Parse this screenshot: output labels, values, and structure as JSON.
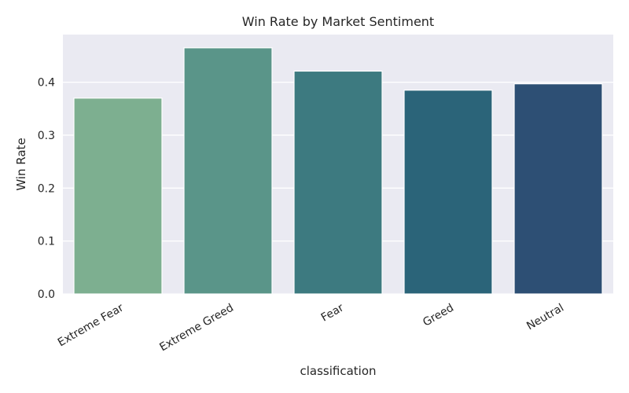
{
  "chart_data": {
    "type": "bar",
    "title": "Win Rate by Market Sentiment",
    "xlabel": "classification",
    "ylabel": "Win Rate",
    "categories": [
      "Extreme Fear",
      "Extreme Greed",
      "Fear",
      "Greed",
      "Neutral"
    ],
    "values": [
      0.37,
      0.465,
      0.421,
      0.385,
      0.397
    ],
    "colors": [
      "#7daf90",
      "#5a9589",
      "#3d7a80",
      "#2b6479",
      "#2d4f74"
    ],
    "ylim": [
      0,
      0.49
    ],
    "yticks": [
      "0.0",
      "0.1",
      "0.2",
      "0.3",
      "0.4"
    ],
    "grid": true,
    "background": "#eaeaf2",
    "legend": "none"
  }
}
